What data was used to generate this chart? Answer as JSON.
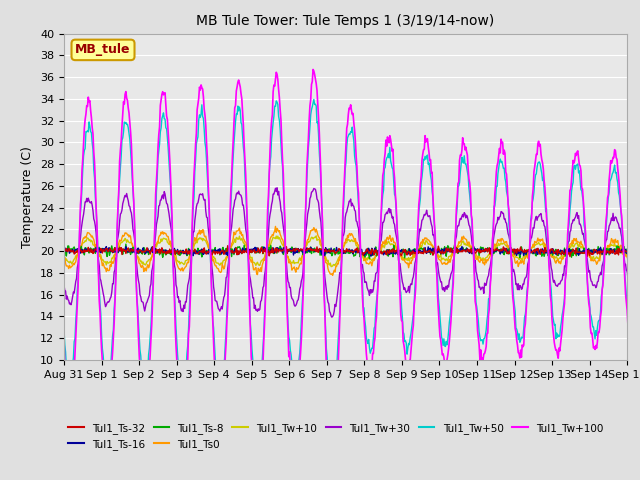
{
  "title": "MB Tule Tower: Tule Temps 1 (3/19/14-now)",
  "ylabel": "Temperature (C)",
  "ylim": [
    10,
    40
  ],
  "yticks": [
    10,
    12,
    14,
    16,
    18,
    20,
    22,
    24,
    26,
    28,
    30,
    32,
    34,
    36,
    38,
    40
  ],
  "bg_color": "#e0e0e0",
  "plot_bg": "#e8e8e8",
  "series": [
    {
      "label": "Tul1_Ts-32",
      "color": "#cc0000",
      "lw": 1.0
    },
    {
      "label": "Tul1_Ts-16",
      "color": "#000099",
      "lw": 1.0
    },
    {
      "label": "Tul1_Ts-8",
      "color": "#00aa00",
      "lw": 1.0
    },
    {
      "label": "Tul1_Ts0",
      "color": "#ff9900",
      "lw": 1.0
    },
    {
      "label": "Tul1_Tw+10",
      "color": "#cccc00",
      "lw": 1.0
    },
    {
      "label": "Tul1_Tw+30",
      "color": "#9900cc",
      "lw": 1.0
    },
    {
      "label": "Tul1_Tw+50",
      "color": "#00cccc",
      "lw": 1.0
    },
    {
      "label": "Tul1_Tw+100",
      "color": "#ff00ff",
      "lw": 1.2
    }
  ],
  "x_labels": [
    "Aug 31",
    "Sep 1",
    "Sep 2",
    "Sep 3",
    "Sep 4",
    "Sep 5",
    "Sep 6",
    "Sep 7",
    "Sep 8",
    "Sep 9",
    "Sep 10",
    "Sep 11",
    "Sep 12",
    "Sep 13",
    "Sep 14",
    "Sep 15"
  ],
  "n_days": 16,
  "legend_box_color": "#ffff99",
  "legend_box_edge": "#cc9900"
}
